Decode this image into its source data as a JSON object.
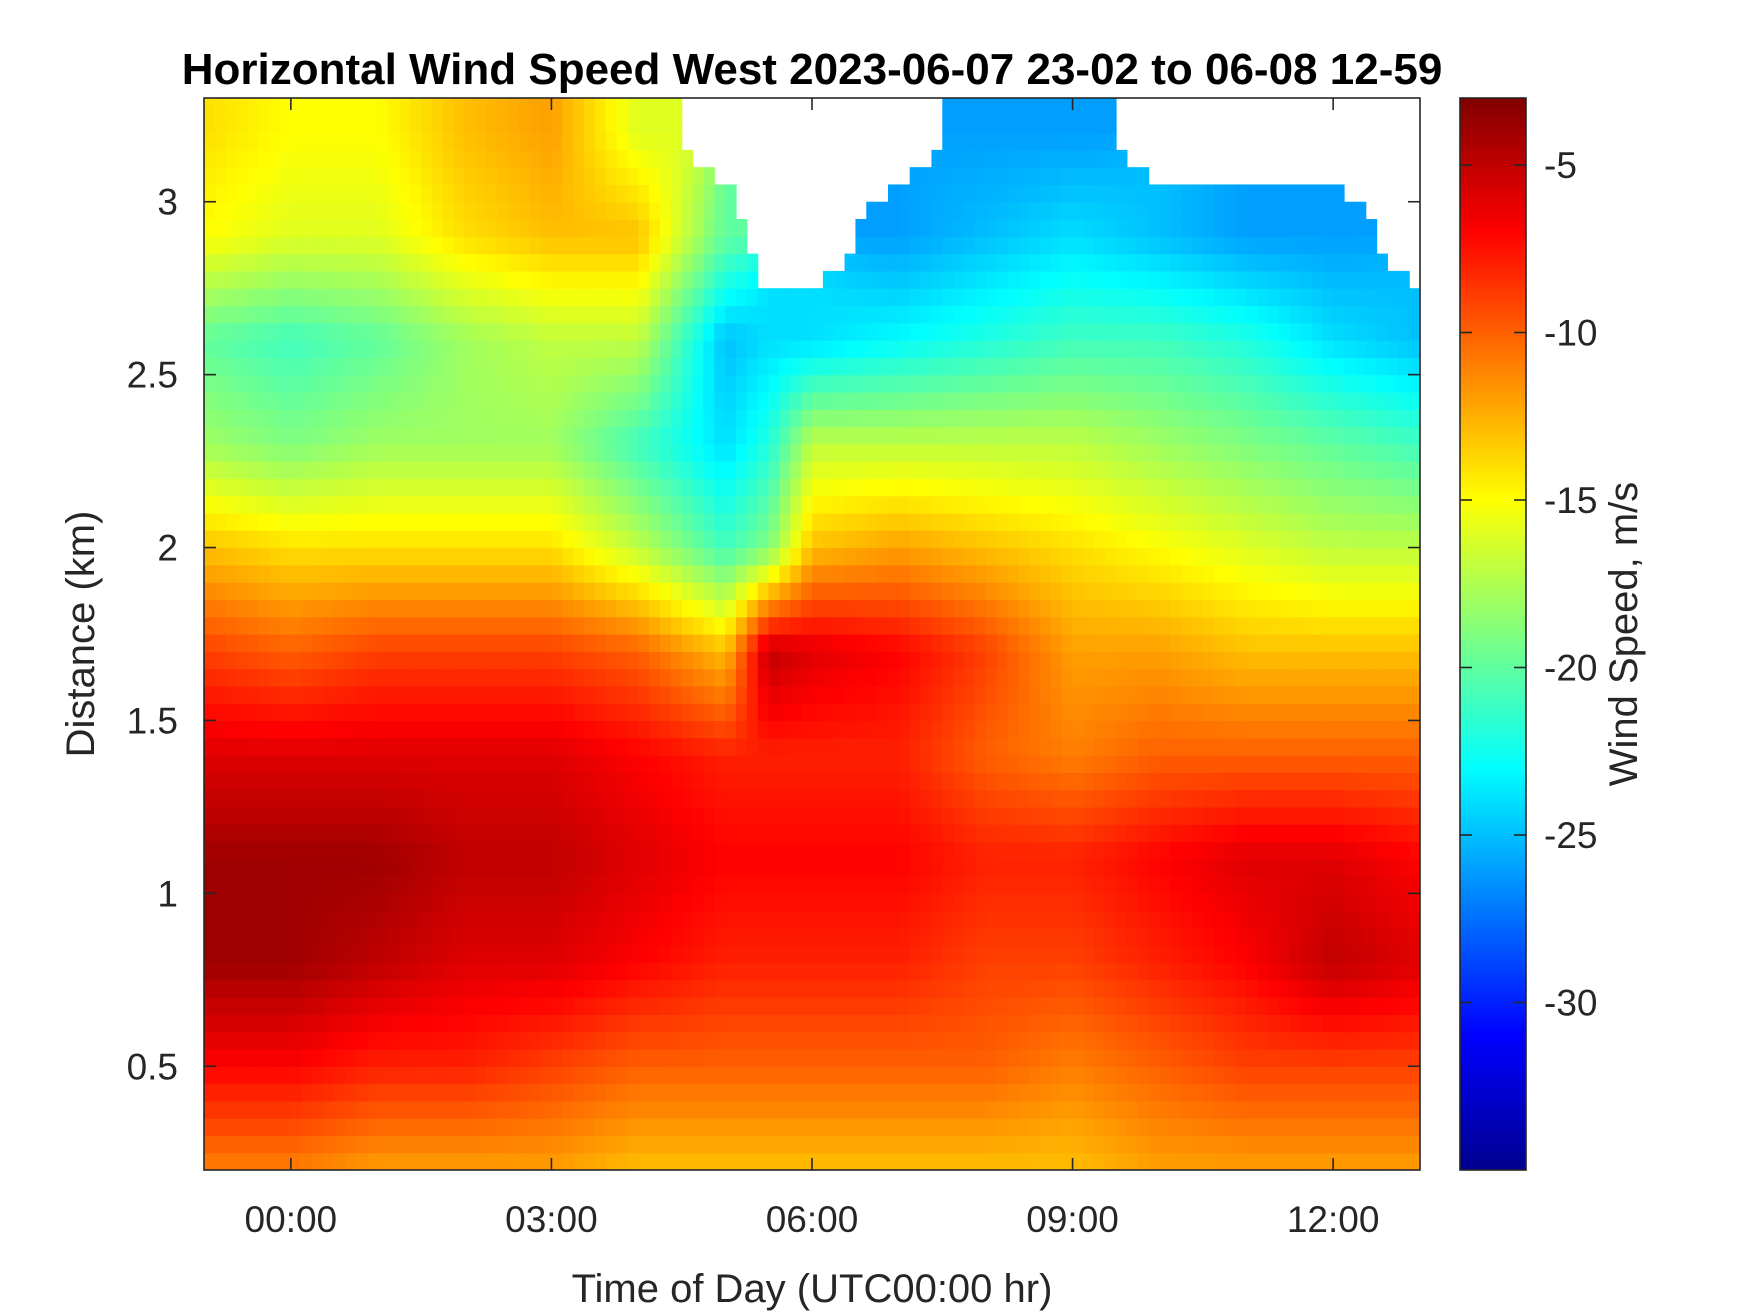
{
  "chart_data": {
    "type": "heatmap",
    "title": "Horizontal Wind Speed West 2023-06-07 23-02 to 06-08 12-59",
    "xlabel": "Time of Day (UTC00:00 hr)",
    "ylabel": "Distance (km)",
    "xlim": [
      -1,
      13
    ],
    "ylim": [
      0.2,
      3.3
    ],
    "x_ticks": [
      0,
      3,
      6,
      9,
      12
    ],
    "x_tick_labels": [
      "00:00",
      "03:00",
      "06:00",
      "09:00",
      "12:00"
    ],
    "y_ticks": [
      0.5,
      1,
      1.5,
      2,
      2.5,
      3
    ],
    "y_tick_labels": [
      "0.5",
      "1",
      "1.5",
      "2",
      "2.5",
      "3"
    ],
    "grid": false,
    "colorbar": {
      "label": "Wind Speed, m/s",
      "range": [
        -35,
        -3
      ],
      "ticks": [
        -30,
        -25,
        -20,
        -15,
        -10,
        -5
      ],
      "tick_labels": [
        "-30",
        "-25",
        "-20",
        "-15",
        "-10",
        "-5"
      ],
      "colormap": "jet"
    },
    "profile_times_hr": [
      -1,
      0,
      1,
      2,
      3,
      4,
      5,
      5.5,
      6,
      7,
      8,
      9,
      10,
      11,
      12,
      13
    ],
    "profile_heights_km": [
      0.2,
      0.5,
      0.8,
      1.1,
      1.4,
      1.7,
      2.0,
      2.3,
      2.6,
      2.9,
      3.2
    ],
    "speed_profiles_ms": [
      [
        -11,
        -7,
        -4,
        -4,
        -6,
        -9,
        -13,
        -18,
        -20,
        -15,
        -14
      ],
      [
        -11,
        -7,
        -4,
        -4,
        -6,
        -10,
        -14,
        -19,
        -21,
        -16,
        -15
      ],
      [
        -12,
        -8,
        -5,
        -4,
        -6,
        -9,
        -14,
        -18,
        -20,
        -16,
        -15
      ],
      [
        -12,
        -8,
        -6,
        -5,
        -6,
        -9,
        -14,
        -18,
        -18,
        -14,
        -13
      ],
      [
        -12,
        -9,
        -6,
        -5,
        -6,
        -9,
        -14,
        -18,
        -17,
        -13,
        -12
      ],
      [
        -13,
        -10,
        -7,
        -6,
        -7,
        -10,
        -17,
        -21,
        -17,
        -13,
        -16
      ],
      [
        -13,
        -10,
        -8,
        -7,
        -8,
        -13,
        -21,
        -24,
        -25,
        -20,
        null
      ],
      [
        -13,
        -10,
        -8,
        -7,
        -8,
        -5,
        -19,
        -22,
        -24,
        null,
        null
      ],
      [
        -13,
        -10,
        -8,
        -7,
        -8,
        -6,
        -13,
        -17,
        -24,
        null,
        null
      ],
      [
        -13,
        -10,
        -8,
        -7,
        -8,
        -7,
        -12,
        -17,
        -23,
        -26,
        null
      ],
      [
        -13,
        -10,
        -9,
        -8,
        -10,
        -9,
        -13,
        -17,
        -22,
        -25,
        -26
      ],
      [
        -13,
        -11,
        -9,
        -8,
        -11,
        -12,
        -14,
        -17,
        -21,
        -24,
        -26
      ],
      [
        -12,
        -10,
        -8,
        -7,
        -10,
        -12,
        -15,
        -18,
        -21,
        -25,
        null
      ],
      [
        -12,
        -9,
        -7,
        -6,
        -10,
        -13,
        -16,
        -19,
        -22,
        -26,
        null
      ],
      [
        -12,
        -9,
        -5,
        -6,
        -10,
        -13,
        -17,
        -20,
        -24,
        -26,
        null
      ],
      [
        -12,
        -9,
        -6,
        -7,
        -10,
        -13,
        -17,
        -21,
        -25,
        null,
        null
      ]
    ]
  }
}
